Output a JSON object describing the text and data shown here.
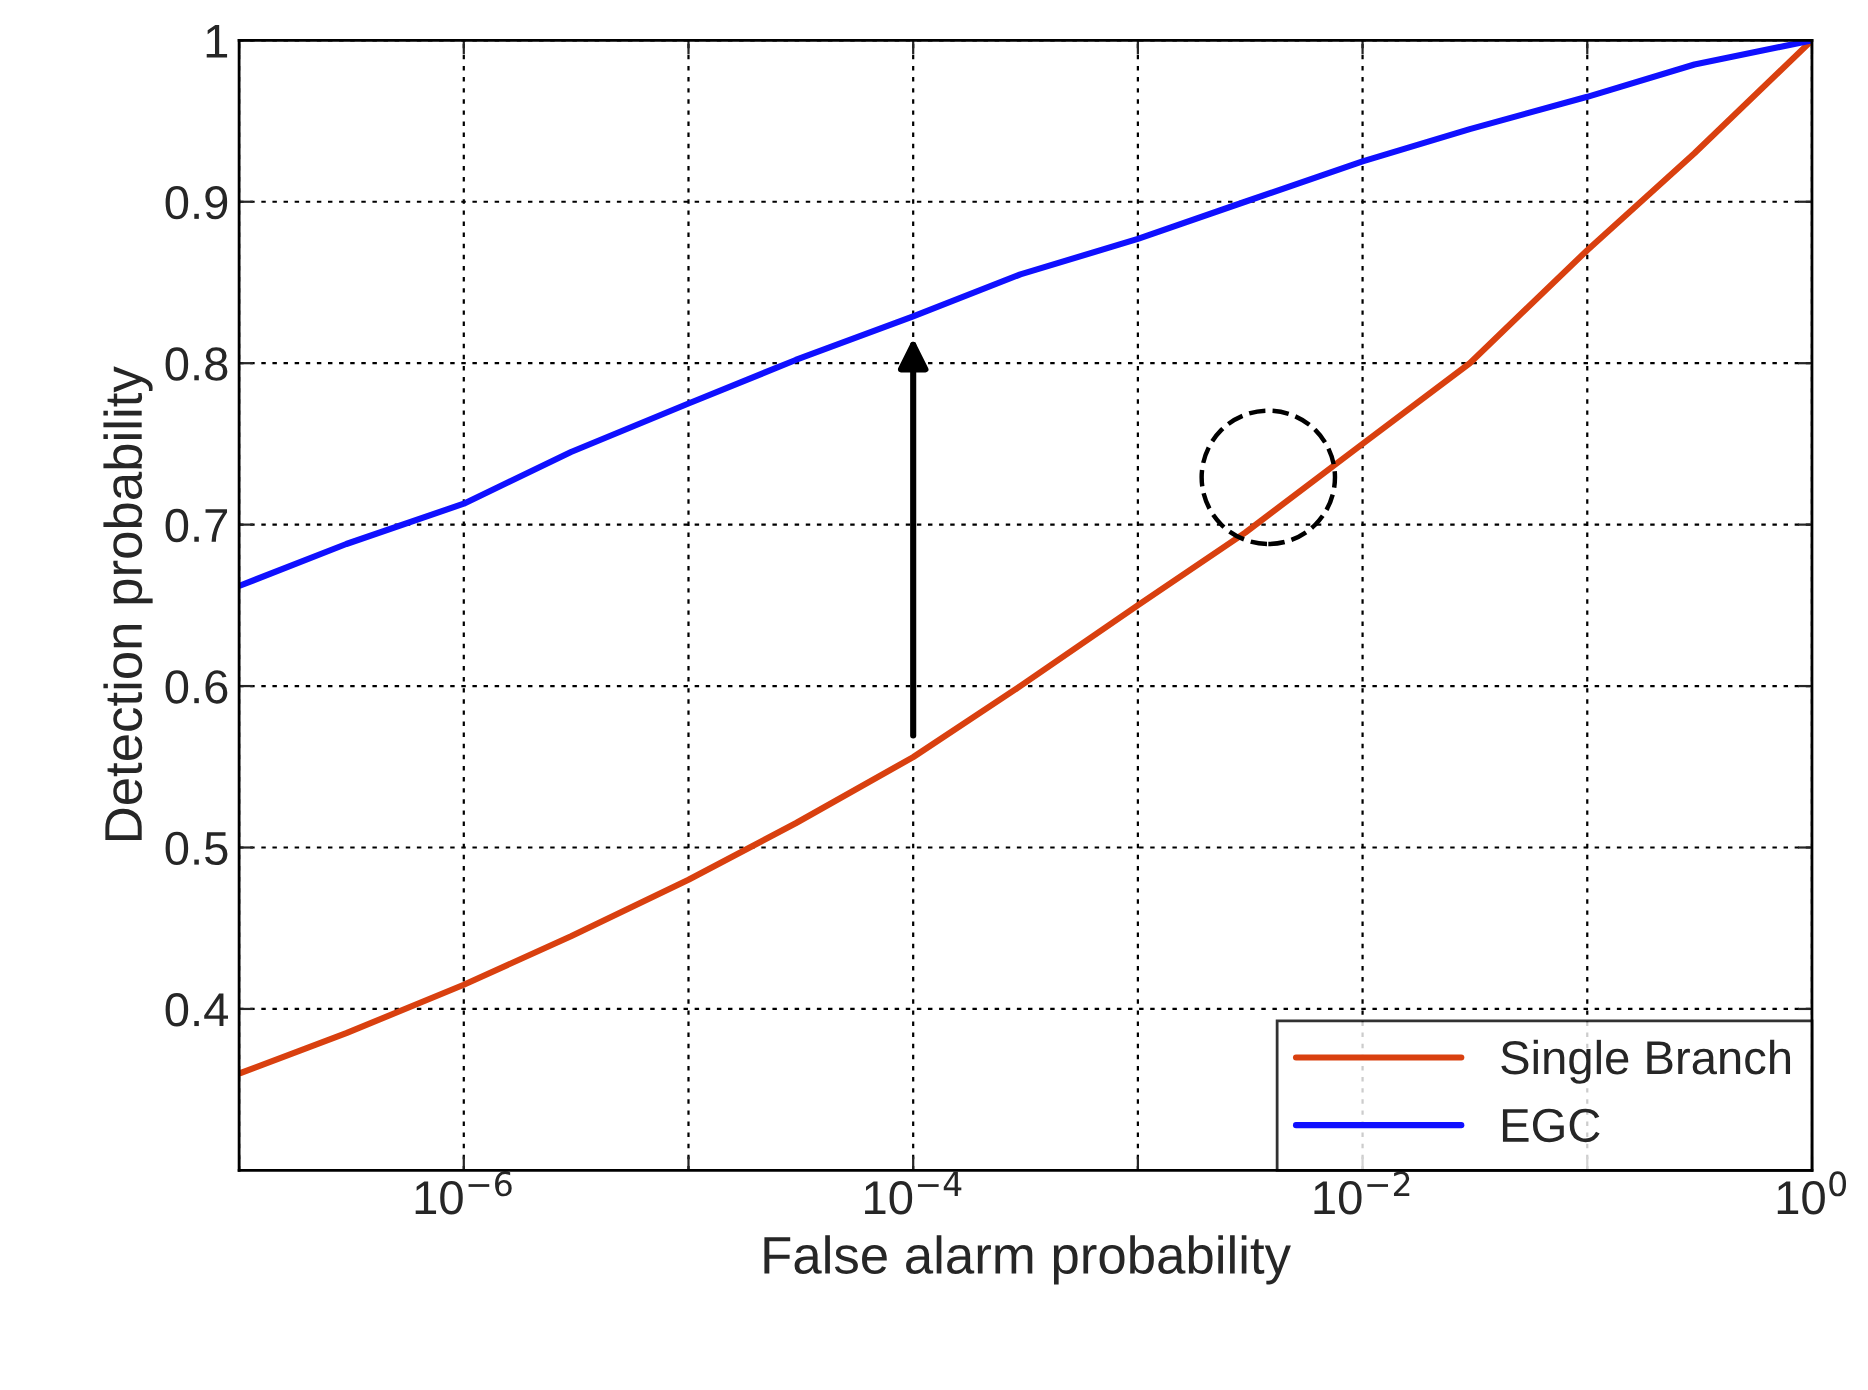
{
  "chart_data": {
    "type": "line",
    "xlabel": "False alarm probability",
    "ylabel": "Detection probability",
    "log": "x",
    "xlim": [
      1e-07,
      1
    ],
    "ylim": [
      0.3,
      1
    ],
    "xticks": [
      {
        "value": 1e-07,
        "label": null
      },
      {
        "value": 1e-06,
        "label": "10$^{−6}$"
      },
      {
        "value": 1e-05,
        "label": null
      },
      {
        "value": 0.0001,
        "label": "10$^{−4}$"
      },
      {
        "value": 0.001,
        "label": null
      },
      {
        "value": 0.01,
        "label": "10$^{−2}$"
      },
      {
        "value": 0.1,
        "label": null
      },
      {
        "value": 1,
        "label": "10$^{0}$"
      }
    ],
    "yticks": [
      0.4,
      0.5,
      0.6,
      0.7,
      0.8,
      0.9,
      1
    ],
    "x": [
      1e-07,
      3e-07,
      1e-06,
      3e-06,
      1e-05,
      3e-05,
      0.0001,
      0.0003,
      0.001,
      0.003,
      0.01,
      0.03,
      0.1,
      0.3,
      1
    ],
    "series": [
      {
        "name": "Single Branch",
        "color": "#d9400f",
        "values": [
          0.36,
          0.385,
          0.415,
          0.445,
          0.48,
          0.515,
          0.556,
          0.6,
          0.65,
          0.695,
          0.75,
          0.8,
          0.87,
          0.93,
          1.0
        ]
      },
      {
        "name": "EGC",
        "color": "#1010ff",
        "values": [
          0.662,
          0.688,
          0.713,
          0.745,
          0.775,
          0.802,
          0.829,
          0.855,
          0.877,
          0.9,
          0.925,
          0.945,
          0.965,
          0.985,
          1.0
        ]
      }
    ],
    "grid": true,
    "legend": "bottom right",
    "line_style": "solid",
    "marker": "none"
  }
}
